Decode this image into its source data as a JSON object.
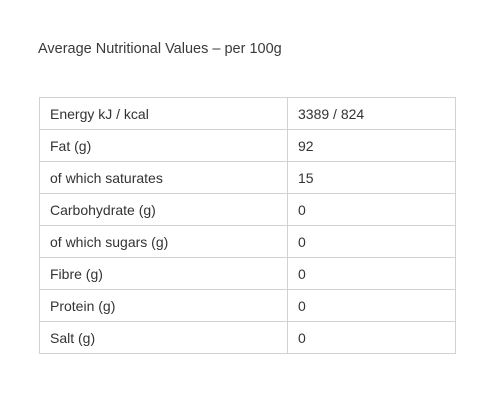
{
  "heading": "Average Nutritional Values – per 100g",
  "rows": [
    {
      "label": "Energy kJ / kcal",
      "value": "3389 / 824"
    },
    {
      "label": "Fat (g)",
      "value": "92"
    },
    {
      "label": "of which saturates",
      "value": "15"
    },
    {
      "label": "Carbohydrate (g)",
      "value": "0"
    },
    {
      "label": "of which sugars (g)",
      "value": "0"
    },
    {
      "label": "Fibre (g)",
      "value": "0"
    },
    {
      "label": "Protein (g)",
      "value": "0"
    },
    {
      "label": "Salt (g)",
      "value": "0"
    }
  ]
}
